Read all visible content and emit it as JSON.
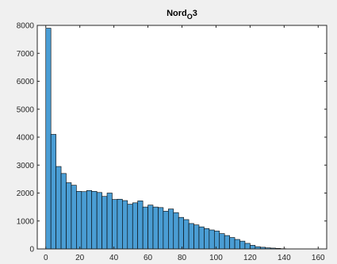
{
  "chart_data": {
    "type": "bar",
    "title": "Nord",
    "title_subscript": "O",
    "title_suffix": "3",
    "xlabel": "",
    "ylabel": "",
    "bin_width": 3,
    "bin_start": 0,
    "xlim": [
      -5,
      165
    ],
    "ylim": [
      0,
      8000
    ],
    "xticks": [
      0,
      20,
      40,
      60,
      80,
      100,
      120,
      140,
      160
    ],
    "yticks": [
      0,
      1000,
      2000,
      3000,
      4000,
      5000,
      6000,
      7000,
      8000
    ],
    "values": [
      7900,
      4100,
      2950,
      2700,
      2370,
      2280,
      2060,
      2050,
      2090,
      2060,
      2020,
      1880,
      2000,
      1770,
      1780,
      1730,
      1600,
      1650,
      1720,
      1500,
      1570,
      1500,
      1480,
      1350,
      1430,
      1300,
      1130,
      1050,
      910,
      860,
      790,
      730,
      680,
      640,
      550,
      480,
      410,
      340,
      280,
      200,
      130,
      80,
      60,
      40,
      30,
      20,
      10
    ],
    "bar_color": "#4a9dd4",
    "edge_color": "#000000",
    "grid": false,
    "legend": "none"
  }
}
